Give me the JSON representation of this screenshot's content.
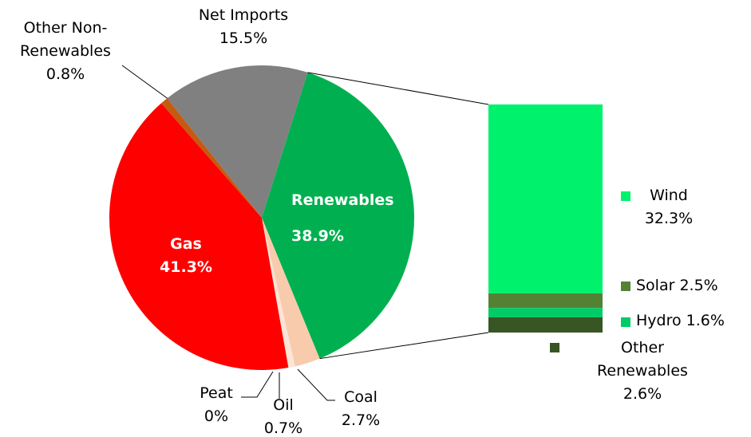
{
  "chart_data": {
    "type": "pie-of-bar",
    "categories": [
      "Renewables",
      "Coal",
      "Oil",
      "Peat",
      "Gas",
      "Other Non-Renewables",
      "Net Imports"
    ],
    "values": [
      38.9,
      2.7,
      0.7,
      0,
      41.3,
      0.8,
      15.5
    ],
    "value_labels": [
      "38.9%",
      "2.7%",
      "0.7%",
      "0%",
      "41.3%",
      "0.8%",
      "15.5%"
    ],
    "colors": [
      "#00b050",
      "#f8cbad",
      "#fbe5d6",
      "#7f6000",
      "#ff0000",
      "#c55a11",
      "#808080"
    ],
    "bar": {
      "categories": [
        "Wind",
        "Solar",
        "Hydro",
        "Other Renewables"
      ],
      "values": [
        32.3,
        2.5,
        1.6,
        2.6
      ],
      "value_labels": [
        "32.3%",
        "2.5%",
        "1.6%",
        "2.6%"
      ],
      "colors": [
        "#00f26d",
        "#548235",
        "#00cc66",
        "#375623"
      ]
    }
  }
}
